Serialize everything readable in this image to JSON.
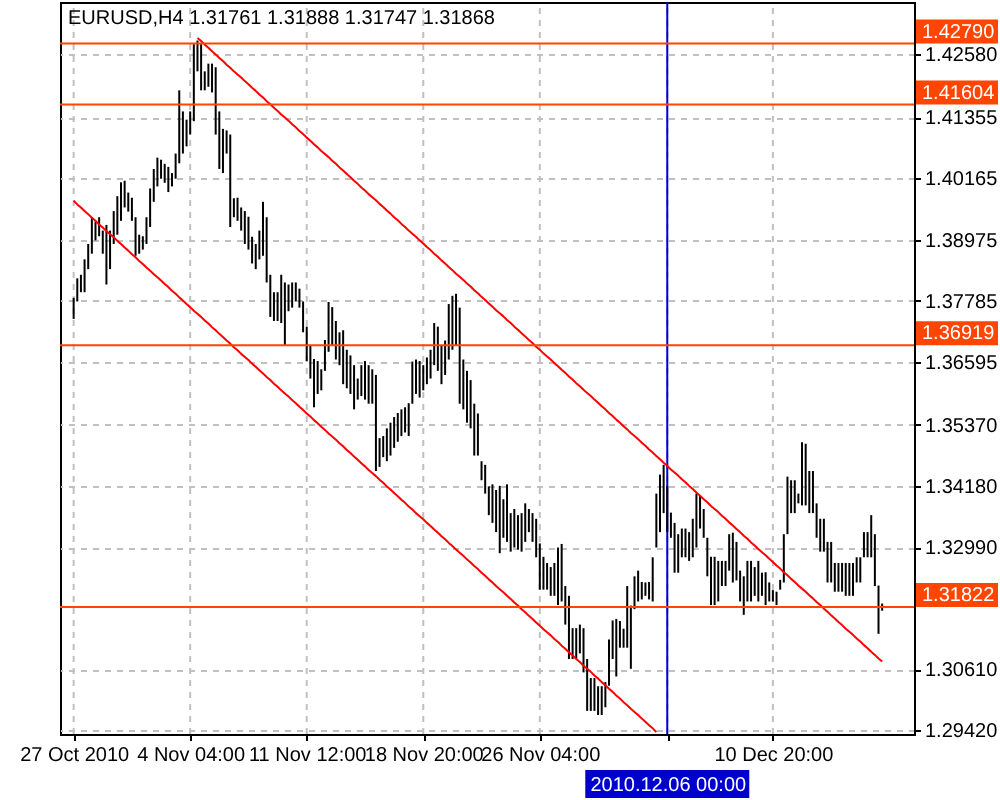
{
  "chart_data": {
    "type": "bar",
    "title": "EURUSD,H4 1.31761 1.31888 1.31747 1.31868",
    "categories": [
      "27 Oct 2010",
      null,
      null,
      null,
      null,
      null,
      null,
      null,
      null,
      null,
      null,
      null,
      null,
      null,
      null,
      null,
      null,
      null,
      null,
      null,
      null,
      null,
      null,
      null,
      null,
      null,
      null,
      null,
      null,
      null,
      null,
      null,
      "4 Nov 04:00",
      null,
      null,
      null,
      null,
      null,
      null,
      null,
      null,
      null,
      null,
      null,
      null,
      null,
      null,
      null,
      null,
      null,
      null,
      null,
      null,
      null,
      null,
      null,
      null,
      null,
      null,
      null,
      null,
      null,
      null,
      null,
      "11 Nov 12:00",
      null,
      null,
      null,
      null,
      null,
      null,
      null,
      null,
      null,
      null,
      null,
      null,
      null,
      null,
      null,
      null,
      null,
      null,
      null,
      null,
      null,
      null,
      null,
      null,
      null,
      null,
      null,
      null,
      null,
      null,
      null,
      "18 Nov 20:00",
      null,
      null,
      null,
      null,
      null,
      null,
      null,
      null,
      null,
      null,
      null,
      null,
      null,
      null,
      null,
      null,
      null,
      null,
      null,
      null,
      null,
      null,
      null,
      null,
      null,
      null,
      null,
      null,
      null,
      null,
      null,
      "26 Nov 04:00",
      null,
      null,
      null,
      null,
      null,
      null,
      null,
      null,
      null,
      null,
      null,
      null,
      null,
      null,
      null,
      null,
      null,
      null,
      null,
      null,
      null,
      null,
      null,
      null,
      null,
      null,
      null,
      null,
      null,
      null,
      null,
      null,
      null,
      null,
      "2010.12.06 00:00",
      null,
      null,
      null,
      null,
      null,
      null,
      null,
      null,
      null,
      null,
      null,
      null,
      null,
      null,
      null,
      null,
      null,
      null,
      null,
      null,
      null,
      null,
      null,
      null,
      null,
      null,
      null,
      null,
      "10 Dec 20:00",
      null,
      null,
      null,
      null,
      null,
      null,
      null,
      null,
      null,
      null,
      null,
      null,
      null,
      null,
      null,
      null,
      null,
      null,
      null,
      null,
      null,
      null,
      null,
      null,
      null,
      null,
      null,
      null,
      null,
      null
    ],
    "series": [
      {
        "color": "#000000",
        "base": [
          1.3743,
          1.3777,
          1.3795,
          1.3795,
          1.384,
          1.387,
          1.3896,
          1.3904,
          1.387,
          1.381,
          1.384,
          1.3889,
          1.3907,
          1.3934,
          1.396,
          1.3952,
          1.3934,
          1.3866,
          1.387,
          1.3878,
          1.3889,
          1.3922,
          1.3971,
          1.4001,
          1.4016,
          1.4008,
          1.399,
          1.4001,
          1.4016,
          1.4046,
          1.4065,
          1.4079,
          1.4102,
          1.4128,
          1.4225,
          1.4188,
          1.4188,
          1.4195,
          1.4184,
          1.4102,
          1.4035,
          1.4027,
          1.4065,
          1.3922,
          1.3941,
          1.3934,
          1.3915,
          1.3889,
          1.3878,
          1.3851,
          1.384,
          1.3859,
          1.3866,
          1.3814,
          1.3747,
          1.3739,
          1.3739,
          1.3735,
          1.3691,
          1.3758,
          1.3765,
          1.3777,
          1.3765,
          1.3717,
          1.3661,
          1.3627,
          1.3571,
          1.3597,
          1.3604,
          1.3642,
          1.3679,
          1.3691,
          1.3664,
          1.3653,
          1.3616,
          1.3608,
          1.3597,
          1.3567,
          1.3586,
          1.3593,
          1.3586,
          1.3578,
          1.3578,
          1.3447,
          1.3455,
          1.3474,
          1.3466,
          1.3477,
          1.3492,
          1.3504,
          1.3515,
          1.3522,
          1.3515,
          1.3578,
          1.3597,
          1.359,
          1.3604,
          1.3616,
          1.3627,
          1.3653,
          1.3642,
          1.3616,
          1.3634,
          1.3664,
          1.3683,
          1.3691,
          1.3578,
          1.3567,
          1.3541,
          1.353,
          1.3477,
          1.3477,
          1.3429,
          1.3403,
          1.3361,
          1.3346,
          1.3328,
          1.3287,
          1.3317,
          1.3309,
          1.329,
          1.3298,
          1.3294,
          1.329,
          1.3309,
          1.3328,
          1.3309,
          1.3279,
          1.3216,
          1.3216,
          1.3216,
          1.3204,
          1.3204,
          1.3186,
          1.3193,
          1.3148,
          1.3081,
          1.3081,
          1.3081,
          1.3092,
          1.3055,
          1.298,
          1.298,
          1.298,
          1.2972,
          1.2972,
          1.2987,
          1.3029,
          1.3081,
          1.3047,
          1.3103,
          1.3103,
          1.3103,
          1.3062,
          1.3178,
          1.3193,
          1.3197,
          1.3204,
          1.3197,
          1.3193,
          1.3298,
          1.3328,
          1.3365,
          1.3328,
          1.3317,
          1.3249,
          1.3249,
          1.3279,
          1.3279,
          1.3272,
          1.3279,
          1.3298,
          1.3335,
          1.3317,
          1.3242,
          1.3186,
          1.3186,
          1.3193,
          1.3223,
          1.3223,
          1.3253,
          1.323,
          1.3234,
          1.3193,
          1.3167,
          1.3193,
          1.3193,
          1.3204,
          1.3193,
          1.3204,
          1.3186,
          1.3193,
          1.3193,
          1.3186,
          1.3216,
          1.323,
          1.3324,
          1.3365,
          1.3365,
          1.3384,
          1.338,
          1.338,
          1.3365,
          1.3365,
          1.3317,
          1.329,
          1.329,
          1.323,
          1.323,
          1.3212,
          1.3212,
          1.3212,
          1.3204,
          1.3204,
          1.3204,
          1.323,
          1.323,
          1.3279,
          1.3279,
          1.3279,
          1.3223,
          1.313,
          1.3175
        ],
        "values": [
          0.0041,
          0.0045,
          0.0034,
          0.0064,
          0.0049,
          0.0071,
          0.0037,
          0.0037,
          0.0045,
          0.0116,
          0.0075,
          0.0064,
          0.0075,
          0.0075,
          0.0052,
          0.0037,
          0.0045,
          0.0075,
          0.0037,
          0.0026,
          0.0052,
          0.0075,
          0.0064,
          0.0056,
          0.0037,
          0.0037,
          0.0049,
          0.0026,
          0.0049,
          0.0142,
          0.0082,
          0.0052,
          0.0045,
          0.015,
          0.006,
          0.009,
          0.0037,
          0.0045,
          0.0056,
          0.0131,
          0.0112,
          0.0086,
          0.0045,
          0.018,
          0.0037,
          0.0045,
          0.0045,
          0.0064,
          0.0064,
          0.0052,
          0.0049,
          0.0056,
          0.0105,
          0.0127,
          0.0082,
          0.0056,
          0.0056,
          0.0094,
          0.0123,
          0.0052,
          0.0049,
          0.0037,
          0.0037,
          0.006,
          0.0067,
          0.0064,
          0.0094,
          0.0064,
          0.0041,
          0.006,
          0.0097,
          0.0075,
          0.0075,
          0.0064,
          0.0105,
          0.0075,
          0.0075,
          0.0086,
          0.0041,
          0.006,
          0.0075,
          0.0075,
          0.0067,
          0.0187,
          0.0056,
          0.0041,
          0.0064,
          0.0064,
          0.006,
          0.0056,
          0.0052,
          0.0049,
          0.0064,
          0.0082,
          0.0067,
          0.0071,
          0.0049,
          0.0052,
          0.0056,
          0.0082,
          0.0086,
          0.0075,
          0.0067,
          0.0108,
          0.0105,
          0.0101,
          0.0187,
          0.0097,
          0.0101,
          0.0094,
          0.0101,
          0.0082,
          0.0037,
          0.0056,
          0.0056,
          0.0075,
          0.0082,
          0.0131,
          0.0075,
          0.0112,
          0.0075,
          0.0075,
          0.0067,
          0.0075,
          0.0075,
          0.0045,
          0.0056,
          0.0075,
          0.009,
          0.0064,
          0.0052,
          0.0056,
          0.0064,
          0.0112,
          0.0112,
          0.0075,
          0.0123,
          0.006,
          0.006,
          0.0056,
          0.0086,
          0.0101,
          0.0064,
          0.0064,
          0.0056,
          0.0056,
          0.0049,
          0.009,
          0.0075,
          0.0112,
          0.0052,
          0.0037,
          0.012,
          0.0123,
          0.0064,
          0.006,
          0.0034,
          0.0026,
          0.0034,
          0.0086,
          0.0105,
          0.0112,
          0.0094,
          0.009,
          0.0049,
          0.0097,
          0.0075,
          0.0056,
          0.0056,
          0.0056,
          0.0075,
          0.0105,
          0.0064,
          0.0056,
          0.0075,
          0.0094,
          0.0094,
          0.0079,
          0.0049,
          0.0049,
          0.0071,
          0.0097,
          0.0075,
          0.006,
          0.0075,
          0.0079,
          0.0079,
          0.0056,
          0.0079,
          0.0045,
          0.0064,
          0.0037,
          0.0022,
          0.0026,
          0.0019,
          0.0094,
          0.0112,
          0.0064,
          0.0064,
          0.0019,
          0.0123,
          0.012,
          0.0082,
          0.0082,
          0.0067,
          0.0064,
          0.0064,
          0.0079,
          0.0079,
          0.0056,
          0.0056,
          0.0056,
          0.0064,
          0.0064,
          0.0064,
          0.0049,
          0.0049,
          0.0049,
          0.0049,
          0.0082,
          0.0101,
          0.0094,
          0.0014
        ]
      },
      {
        "type": "line",
        "color": "#ff0000",
        "values": [
          null,
          null,
          null,
          null,
          null,
          null,
          null,
          null,
          null,
          null,
          null,
          null,
          null,
          null,
          null,
          null,
          null,
          null,
          null,
          null,
          null,
          null,
          null,
          null,
          null,
          null,
          null,
          null,
          null,
          null,
          null,
          null,
          null,
          null,
          1.429,
          1.4284,
          1.4277,
          1.4271,
          1.4264,
          1.4258,
          1.4251,
          1.4245,
          1.4238,
          1.4232,
          1.4225,
          1.4219,
          1.4213,
          1.4206,
          1.42,
          1.4193,
          1.4187,
          1.418,
          1.4174,
          1.4167,
          1.4161,
          1.4154,
          1.4148,
          1.4141,
          1.4135,
          1.4129,
          1.4122,
          1.4116,
          1.4109,
          1.4103,
          1.4096,
          1.409,
          1.4083,
          1.4077,
          1.407,
          1.4064,
          1.4058,
          1.4051,
          1.4045,
          1.4038,
          1.4032,
          1.4025,
          1.4019,
          1.4012,
          1.4006,
          1.3999,
          1.3993,
          1.3986,
          1.398,
          1.3974,
          1.3967,
          1.3961,
          1.3954,
          1.3948,
          1.3941,
          1.3935,
          1.3928,
          1.3922,
          1.3915,
          1.3909,
          1.3903,
          1.3896,
          1.389,
          1.3883,
          1.3877,
          1.387,
          1.3864,
          1.3857,
          1.3851,
          1.3844,
          1.3838,
          1.3831,
          1.3825,
          1.3819,
          1.3812,
          1.3806,
          1.3799,
          1.3793,
          1.3786,
          1.378,
          1.3773,
          1.3767,
          1.376,
          1.3754,
          1.3748,
          1.3741,
          1.3735,
          1.3728,
          1.3722,
          1.3715,
          1.3709,
          1.3702,
          1.3696,
          1.3689,
          1.3683,
          1.3676,
          1.367,
          1.3664,
          1.3657,
          1.3651,
          1.3644,
          1.3638,
          1.3631,
          1.3625,
          1.3618,
          1.3612,
          1.3605,
          1.3599,
          1.3593,
          1.3586,
          1.358,
          1.3573,
          1.3567,
          1.356,
          1.3554,
          1.3547,
          1.3541,
          1.3534,
          1.3528,
          1.3521,
          1.3515,
          1.3509,
          1.3502,
          1.3496,
          1.3489,
          1.3483,
          1.3476,
          1.347,
          1.3463,
          1.3457,
          1.345,
          1.3444,
          1.3438,
          1.3431,
          1.3425,
          1.3418,
          1.3412,
          1.3405,
          1.3399,
          1.3392,
          1.3386,
          1.3379,
          1.3373,
          1.3367,
          1.336,
          1.3354,
          1.3347,
          1.3341,
          1.3334,
          1.3328,
          1.3321,
          1.3315,
          1.3308,
          1.3302,
          1.3295,
          1.3289,
          1.3283,
          1.3276,
          1.327,
          1.3263,
          1.3257,
          1.325,
          1.3244,
          1.3237,
          1.3231,
          1.3224,
          1.3218,
          1.3212,
          1.3205,
          1.3199,
          1.3192,
          1.3186,
          1.3179,
          1.3173,
          1.3166,
          1.316,
          1.3153,
          1.3147,
          1.314,
          1.3134,
          1.3128,
          1.3121,
          1.3115,
          1.3108,
          1.3102,
          1.3095,
          1.3089,
          1.3082,
          1.3076
        ]
      },
      {
        "type": "line",
        "color": "#ff0000",
        "values": [
          1.3973,
          1.3966,
          1.396,
          1.3953,
          1.3947,
          1.394,
          1.3934,
          1.3927,
          1.3921,
          1.3914,
          1.3908,
          1.3902,
          1.3895,
          1.3889,
          1.3882,
          1.3876,
          1.3869,
          1.3863,
          1.3856,
          1.385,
          1.3843,
          1.3837,
          1.383,
          1.3824,
          1.3818,
          1.3811,
          1.3805,
          1.3798,
          1.3792,
          1.3785,
          1.3779,
          1.3772,
          1.3766,
          1.3759,
          1.3753,
          1.3747,
          1.374,
          1.3734,
          1.3727,
          1.3721,
          1.3714,
          1.3708,
          1.3701,
          1.3695,
          1.3688,
          1.3682,
          1.3675,
          1.3669,
          1.3663,
          1.3656,
          1.365,
          1.3643,
          1.3637,
          1.363,
          1.3624,
          1.3617,
          1.3611,
          1.3604,
          1.3598,
          1.3592,
          1.3585,
          1.3579,
          1.3572,
          1.3566,
          1.3559,
          1.3553,
          1.3546,
          1.354,
          1.3533,
          1.3527,
          1.352,
          1.3514,
          1.3508,
          1.3501,
          1.3495,
          1.3488,
          1.3482,
          1.3475,
          1.3469,
          1.3462,
          1.3456,
          1.3449,
          1.3443,
          1.3437,
          1.343,
          1.3424,
          1.3417,
          1.3411,
          1.3404,
          1.3398,
          1.3391,
          1.3385,
          1.3378,
          1.3372,
          1.3365,
          1.3359,
          1.3353,
          1.3346,
          1.334,
          1.3333,
          1.3327,
          1.332,
          1.3314,
          1.3307,
          1.3301,
          1.3294,
          1.3288,
          1.3282,
          1.3275,
          1.3269,
          1.3262,
          1.3256,
          1.3249,
          1.3243,
          1.3236,
          1.323,
          1.3223,
          1.3217,
          1.3211,
          1.3204,
          1.3198,
          1.3191,
          1.3185,
          1.3178,
          1.3172,
          1.3165,
          1.3159,
          1.3152,
          1.3146,
          1.3139,
          1.3133,
          1.3127,
          1.312,
          1.3114,
          1.3107,
          1.3101,
          1.3094,
          1.3088,
          1.3081,
          1.3075,
          1.3068,
          1.3062,
          1.3056,
          1.3049,
          1.3043,
          1.3036,
          1.303,
          1.3023,
          1.3017,
          1.301,
          1.3004,
          1.2997,
          1.2991,
          1.2984,
          1.2978,
          1.2972,
          1.2965,
          1.2959,
          1.2952,
          1.2946,
          1.2939,
          null,
          null,
          null,
          null,
          null,
          null,
          null,
          null,
          null,
          null,
          null,
          null,
          null,
          null,
          null,
          null,
          null,
          null,
          null,
          null,
          null,
          null,
          null,
          null,
          null,
          null,
          null,
          null,
          null,
          null,
          null,
          null,
          null,
          null,
          null,
          null,
          null,
          null,
          null,
          null,
          null,
          null,
          null,
          null,
          null,
          null,
          null,
          null,
          null,
          null,
          null,
          null,
          null,
          null,
          null,
          null,
          null,
          null,
          null,
          null,
          null,
          null
        ]
      }
    ],
    "ylim": [
      1.2935,
      1.436
    ],
    "yticks": [
      {
        "value": 1.4258,
        "label": "1.42580"
      },
      1.41355,
      1.40165,
      1.38975,
      1.37785,
      1.36595,
      {
        "value": 1.3537,
        "label": "1.35370"
      },
      {
        "value": 1.3418,
        "label": "1.34180"
      },
      {
        "value": 1.3299,
        "label": "1.32990"
      },
      {
        "value": 1.3061,
        "label": "1.30610"
      },
      {
        "value": 1.2942,
        "label": "1.29420"
      }
    ],
    "grid": true,
    "ref_lines": [
      {
        "axis": "y",
        "value": 1.4279,
        "label": "1.42790",
        "color": "#ff4500"
      },
      {
        "axis": "y",
        "value": 1.41604,
        "label": "1.41604",
        "color": "#ff4500"
      },
      {
        "axis": "y",
        "value": 1.36919,
        "label": "1.36919",
        "color": "#ff4500"
      },
      {
        "axis": "y",
        "value": 1.31822,
        "label": "1.31822",
        "color": "#ff4500"
      },
      {
        "axis": "x",
        "value": "2010.12.06 00:00",
        "color": "#0000cd"
      }
    ]
  }
}
